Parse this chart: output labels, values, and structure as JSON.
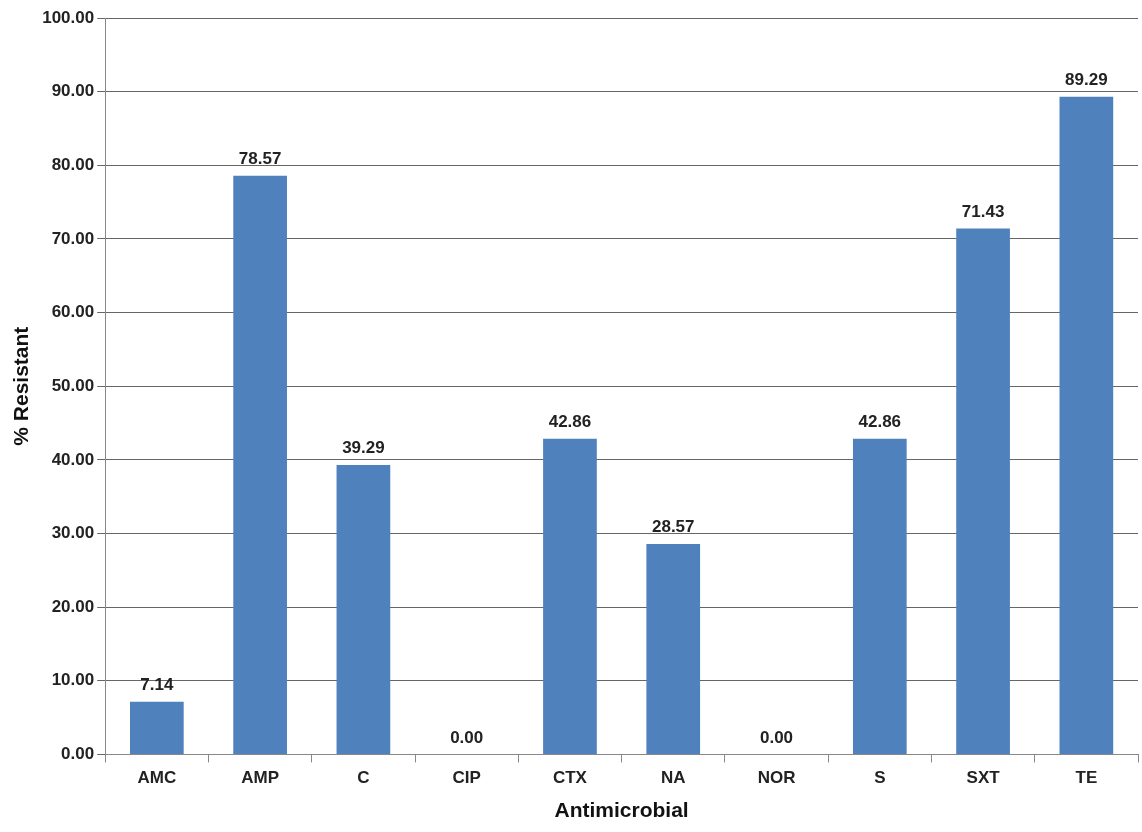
{
  "chart_data": {
    "type": "bar",
    "xlabel": "Antimicrobial",
    "ylabel": "% Resistant",
    "categories": [
      "AMC",
      "AMP",
      "C",
      "CIP",
      "CTX",
      "NA",
      "NOR",
      "S",
      "SXT",
      "TE"
    ],
    "values": [
      7.14,
      78.57,
      39.29,
      0,
      42.86,
      28.57,
      0,
      42.86,
      71.43,
      89.29
    ],
    "value_labels": [
      "7.14",
      "78.57",
      "39.29",
      "0.00",
      "42.86",
      "28.57",
      "0.00",
      "42.86",
      "71.43",
      "89.29"
    ],
    "color": "#4f81bd",
    "ylim": [
      0,
      100
    ],
    "yticks": [
      {
        "value": 0,
        "label": "0.00"
      },
      {
        "value": 10,
        "label": "10.00"
      },
      {
        "value": 20,
        "label": "20.00"
      },
      {
        "value": 30,
        "label": "30.00"
      },
      {
        "value": 40,
        "label": "40.00"
      },
      {
        "value": 50,
        "label": "50.00"
      },
      {
        "value": 60,
        "label": "60.00"
      },
      {
        "value": 70,
        "label": "70.00"
      },
      {
        "value": 80,
        "label": "80.00"
      },
      {
        "value": 90,
        "label": "90.00"
      },
      {
        "value": 100,
        "label": "100.00"
      }
    ],
    "grid": "y",
    "legend": false
  }
}
